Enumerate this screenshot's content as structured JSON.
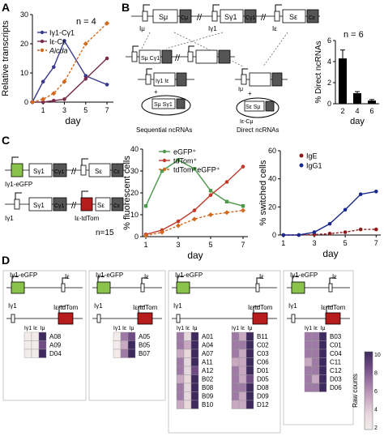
{
  "panels": {
    "A": "A",
    "B": "B",
    "C": "C",
    "D": "D"
  },
  "A": {
    "n_label": "n = 4",
    "legend": [
      "Iγ1-Cγ1",
      "Iε-Cε",
      "Aicda"
    ],
    "colors": [
      "#3a3a8c",
      "#7a2a4a",
      "#d2691e"
    ],
    "chart_data": {
      "type": "line",
      "ylabel": "Relative transcripts",
      "xlabel": "day",
      "x": [
        0,
        1,
        2,
        3,
        5,
        7
      ],
      "xticks": [
        "1",
        "3",
        "5",
        "7"
      ],
      "yticks": [
        "0",
        "10",
        "20",
        "30"
      ],
      "ylim": [
        0,
        30
      ],
      "series": [
        {
          "name": "Iγ1-Cγ1",
          "values": [
            0,
            7,
            12,
            21,
            9,
            6
          ]
        },
        {
          "name": "Iε-Cε",
          "values": [
            0,
            0,
            0.5,
            1,
            8,
            15
          ]
        },
        {
          "name": "Aicda",
          "values": [
            0,
            1,
            3,
            7,
            20,
            27
          ]
        }
      ]
    }
  },
  "B": {
    "labels": {
      "smu": "Sμ",
      "cmu": "Cμ",
      "sg1": "Sγ1",
      "cg1": "Cγ1",
      "se": "Sε",
      "ce": "Cε",
      "imu": "Iμ",
      "ig1": "Iγ1",
      "ie": "Iε",
      "smu_cg1": "Sμ Cγ1",
      "ig1_ce": "Iγ1 Iε",
      "smu_sg1": "Sμ Sγ1",
      "se_smu": "Sε Sμ",
      "ie_cmu": "Iε-Cμ",
      "sequential": "Sequential ncRNAs",
      "direct": "Direct ncRNAs"
    },
    "n_label": "n = 6",
    "chart_data": {
      "type": "bar",
      "ylabel": "% Direct ncRNAs",
      "xlabel": "day",
      "categories": [
        "2",
        "4",
        "6"
      ],
      "values": [
        4.3,
        1.0,
        0.3
      ],
      "yticks": [
        "0",
        "2",
        "4",
        "6"
      ],
      "ylim": [
        0,
        6
      ]
    }
  },
  "C": {
    "constructs": {
      "ig1_egfp": "Iγ1-eGFP",
      "sg1": "Sγ1",
      "cg1": "Cγ1",
      "se": "Sε",
      "ce": "Cε",
      "ig1": "Iγ1",
      "ie_tdtom": "Iε-tdTom"
    },
    "n_label": "n=15",
    "fluor": {
      "legend": [
        "eGFP⁺",
        "tdTom⁺",
        "tdTom⁺eGFP⁺"
      ],
      "colors": [
        "#4a9a4a",
        "#c0392b",
        "#d2691e"
      ],
      "chart_data": {
        "type": "line",
        "ylabel": "% fluorescent cells",
        "xlabel": "day",
        "x": [
          1,
          2,
          3,
          4,
          5,
          6,
          7
        ],
        "xticks": [
          "1",
          "3",
          "5",
          "7"
        ],
        "yticks": [
          "0",
          "10",
          "20",
          "30",
          "40"
        ],
        "ylim": [
          0,
          40
        ],
        "series": [
          {
            "name": "eGFP⁺",
            "values": [
              14,
              30,
              35,
              31,
              21,
              16,
              14
            ]
          },
          {
            "name": "tdTom⁺",
            "values": [
              1,
              3,
              7,
              12,
              19,
              25,
              32
            ]
          },
          {
            "name": "tdTom⁺eGFP⁺",
            "values": [
              0.5,
              2,
              5,
              8,
              10,
              11,
              12
            ]
          }
        ]
      }
    },
    "switch": {
      "legend": [
        "IgE",
        "IgG1"
      ],
      "colors": [
        "#8b1a1a",
        "#1a2a8c"
      ],
      "chart_data": {
        "type": "line",
        "ylabel": "% switched cells",
        "xlabel": "day",
        "x": [
          1,
          2,
          3,
          4,
          5,
          6,
          7
        ],
        "xticks": [
          "1",
          "3",
          "5",
          "7"
        ],
        "yticks": [
          "0",
          "20",
          "40",
          "60"
        ],
        "ylim": [
          0,
          60
        ],
        "series": [
          {
            "name": "IgE",
            "values": [
              0,
              0,
              0.3,
              1,
              2,
              4,
              4
            ]
          },
          {
            "name": "IgG1",
            "values": [
              0,
              0,
              2,
              8,
              18,
              29,
              31
            ]
          }
        ]
      }
    }
  },
  "D": {
    "gene_labels": {
      "ig1_egfp": "Iγ1-eGFP",
      "ie": "Iε",
      "ig1": "Iγ1",
      "ie_tdtom": "Iε-tdTom"
    },
    "col_headers": [
      "Iγ1",
      "Iε",
      "Iμ"
    ],
    "groups": [
      {
        "clones": [
          "A08",
          "A09",
          "D04"
        ]
      },
      {
        "clones": [
          "A05",
          "B05",
          "B07"
        ]
      },
      {
        "clones": [
          "A01",
          "A04",
          "A07",
          "A11",
          "A12",
          "B02",
          "B08",
          "B09",
          "B10"
        ]
      },
      {
        "clones": [
          "B11",
          "C02",
          "C03",
          "C06",
          "D01",
          "D05",
          "D08",
          "D09",
          "D12"
        ]
      },
      {
        "clones": [
          "B03",
          "C01",
          "C04",
          "C11",
          "C12",
          "D03",
          "D06"
        ]
      }
    ],
    "colorbar": {
      "label": "Raw counts",
      "ticks": [
        "10",
        "8",
        "6",
        "4",
        "2"
      ]
    }
  }
}
